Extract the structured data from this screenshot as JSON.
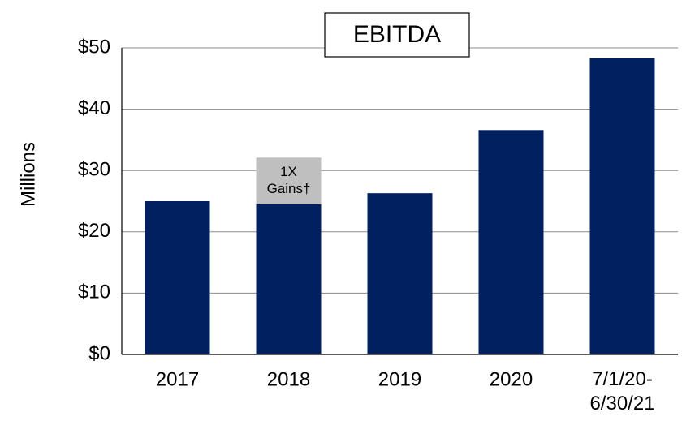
{
  "chart_data": {
    "type": "stacked_bar",
    "title": "EBITDA",
    "y_label": "Millions",
    "categories": [
      "2017",
      "2018",
      "2019",
      "2020",
      "7/1/20-6/30/21"
    ],
    "series": [
      {
        "color": "#002060",
        "values": [
          25,
          24.5,
          26.3,
          36.6,
          48.3
        ]
      },
      {
        "name": "1X Gains†",
        "color": "#bfbfbf",
        "values": [
          null,
          7.6,
          null,
          null,
          null
        ]
      }
    ],
    "ylim": [
      0,
      50
    ],
    "yticks": [
      {
        "value": 0,
        "label": "$0"
      },
      {
        "value": 10,
        "label": "$10"
      },
      {
        "value": 20,
        "label": "$20"
      },
      {
        "value": 30,
        "label": "$30"
      },
      {
        "value": 40,
        "label": "$40"
      },
      {
        "value": 50,
        "label": "$50"
      }
    ],
    "grid": true
  }
}
